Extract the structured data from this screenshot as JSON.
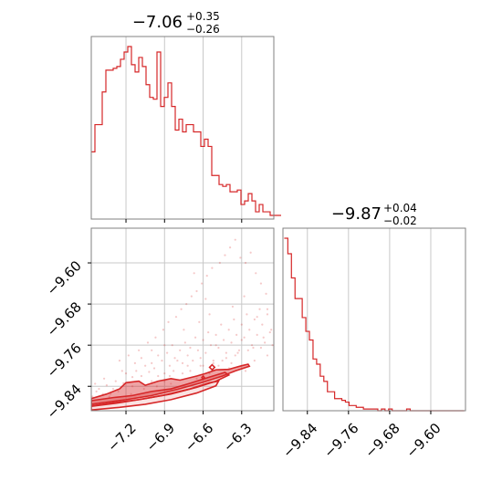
{
  "chart_data": [
    {
      "type": "histogram",
      "title": {
        "value": "−7.06",
        "plus": "+0.35",
        "minus": "−0.26"
      },
      "x_ticks": [
        "−7.2",
        "−6.9",
        "−6.6",
        "−6.3"
      ],
      "x_tick_values": [
        -7.2,
        -6.9,
        -6.6,
        -6.3
      ],
      "xlim": [
        -7.47,
        -6.05
      ],
      "bins_start": -7.47,
      "bin_width": 0.0284,
      "counts": [
        37,
        52,
        52,
        70,
        82,
        82,
        83,
        84,
        88,
        92,
        95,
        85,
        81,
        89,
        84,
        74,
        67,
        66,
        92,
        62,
        67,
        75,
        62,
        49,
        55,
        48,
        52,
        52,
        48,
        48,
        40,
        44,
        40,
        24,
        24,
        19,
        18,
        19,
        15,
        15,
        16,
        8,
        10,
        14,
        10,
        4,
        8,
        4,
        4,
        2,
        2,
        2
      ],
      "color": "#d62728"
    },
    {
      "type": "histogram",
      "title": {
        "value": "−9.87",
        "plus": "+0.04",
        "minus": "−0.02"
      },
      "x_ticks": [
        "−9.84",
        "−9.76",
        "−9.68",
        "−9.60"
      ],
      "x_tick_values": [
        -9.84,
        -9.76,
        -9.68,
        -9.6
      ],
      "xlim": [
        -9.8875,
        -9.5325
      ],
      "bins_start": -9.885,
      "bin_width": 0.007,
      "counts": [
        100,
        91,
        77,
        65,
        65,
        54,
        46,
        41,
        30,
        27,
        20,
        17,
        11,
        11,
        7,
        7,
        6,
        5,
        3,
        3,
        2,
        2,
        1,
        1,
        1,
        1,
        0,
        1,
        0,
        1,
        0,
        0,
        0,
        0,
        1,
        0,
        0,
        0,
        0,
        0,
        0,
        0,
        0,
        0,
        0,
        0,
        0,
        0,
        0,
        0
      ],
      "color": "#d62728"
    },
    {
      "type": "scatter",
      "x_ticks": [
        "−7.2",
        "−6.9",
        "−6.6",
        "−6.3"
      ],
      "x_tick_values": [
        -7.2,
        -6.9,
        -6.6,
        -6.3
      ],
      "y_ticks": [
        "−9.60",
        "−9.68",
        "−9.76",
        "−9.84"
      ],
      "y_tick_values": [
        -9.6,
        -9.68,
        -9.76,
        -9.84
      ],
      "xlim": [
        -7.47,
        -6.05
      ],
      "ylim": [
        -9.8875,
        -9.5325
      ],
      "contour_levels": [
        [
          [
            -7.47,
            -9.878
          ],
          [
            -7.3,
            -9.872
          ],
          [
            -7.1,
            -9.866
          ],
          [
            -6.9,
            -9.857
          ],
          [
            -6.7,
            -9.845
          ],
          [
            -6.55,
            -9.833
          ],
          [
            -6.48,
            -9.83
          ],
          [
            -6.5,
            -9.839
          ],
          [
            -6.65,
            -9.853
          ],
          [
            -6.85,
            -9.866
          ],
          [
            -7.05,
            -9.875
          ],
          [
            -7.25,
            -9.881
          ],
          [
            -7.47,
            -9.886
          ]
        ],
        [
          [
            -7.47,
            -9.868
          ],
          [
            -7.3,
            -9.862
          ],
          [
            -7.15,
            -9.858
          ],
          [
            -7.0,
            -9.85
          ],
          [
            -6.85,
            -9.845
          ],
          [
            -6.7,
            -9.834
          ],
          [
            -6.55,
            -9.822
          ],
          [
            -6.43,
            -9.813
          ],
          [
            -6.4,
            -9.818
          ],
          [
            -6.5,
            -9.83
          ],
          [
            -6.65,
            -9.842
          ],
          [
            -6.85,
            -9.855
          ],
          [
            -7.05,
            -9.864
          ],
          [
            -7.25,
            -9.872
          ],
          [
            -7.47,
            -9.879
          ]
        ],
        [
          [
            -7.47,
            -9.864
          ],
          [
            -7.35,
            -9.855
          ],
          [
            -7.25,
            -9.845
          ],
          [
            -7.2,
            -9.833
          ],
          [
            -7.1,
            -9.83
          ],
          [
            -7.05,
            -9.838
          ],
          [
            -6.95,
            -9.83
          ],
          [
            -6.85,
            -9.825
          ],
          [
            -6.78,
            -9.828
          ],
          [
            -6.65,
            -9.82
          ],
          [
            -6.58,
            -9.815
          ],
          [
            -6.5,
            -9.808
          ],
          [
            -6.4,
            -9.807
          ],
          [
            -6.3,
            -9.8
          ],
          [
            -6.25,
            -9.797
          ],
          [
            -6.24,
            -9.801
          ],
          [
            -6.35,
            -9.81
          ],
          [
            -6.45,
            -9.82
          ],
          [
            -6.6,
            -9.832
          ],
          [
            -6.8,
            -9.846
          ],
          [
            -7.0,
            -9.858
          ],
          [
            -7.2,
            -9.866
          ],
          [
            -7.47,
            -9.875
          ]
        ]
      ],
      "contour_islands": [
        [
          [
            -6.55,
            -9.803
          ],
          [
            -6.53,
            -9.798
          ],
          [
            -6.51,
            -9.803
          ],
          [
            -6.53,
            -9.808
          ]
        ],
        [
          [
            -6.61,
            -9.823
          ],
          [
            -6.6,
            -9.82
          ],
          [
            -6.59,
            -9.823
          ],
          [
            -6.6,
            -9.826
          ]
        ]
      ],
      "scatter_points": [
        [
          -7.41,
          -9.845
        ],
        [
          -7.35,
          -9.838
        ],
        [
          -7.3,
          -9.845
        ],
        [
          -7.28,
          -9.83
        ],
        [
          -7.22,
          -9.834
        ],
        [
          -7.2,
          -9.815
        ],
        [
          -7.15,
          -9.822
        ],
        [
          -7.12,
          -9.81
        ],
        [
          -7.08,
          -9.82
        ],
        [
          -7.05,
          -9.8
        ],
        [
          -7.02,
          -9.812
        ],
        [
          -7.0,
          -9.795
        ],
        [
          -6.98,
          -9.805
        ],
        [
          -6.95,
          -9.78
        ],
        [
          -6.92,
          -9.79
        ],
        [
          -6.9,
          -9.815
        ],
        [
          -6.88,
          -9.775
        ],
        [
          -6.86,
          -9.8
        ],
        [
          -6.84,
          -9.76
        ],
        [
          -6.82,
          -9.785
        ],
        [
          -6.8,
          -9.79
        ],
        [
          -6.78,
          -9.77
        ],
        [
          -6.76,
          -9.795
        ],
        [
          -6.74,
          -9.755
        ],
        [
          -6.72,
          -9.78
        ],
        [
          -6.7,
          -9.765
        ],
        [
          -6.68,
          -9.79
        ],
        [
          -6.66,
          -9.745
        ],
        [
          -6.64,
          -9.77
        ],
        [
          -6.62,
          -9.785
        ],
        [
          -6.6,
          -9.75
        ],
        [
          -6.58,
          -9.775
        ],
        [
          -6.56,
          -9.735
        ],
        [
          -6.54,
          -9.76
        ],
        [
          -6.52,
          -9.79
        ],
        [
          -6.5,
          -9.74
        ],
        [
          -6.48,
          -9.765
        ],
        [
          -6.46,
          -9.72
        ],
        [
          -6.44,
          -9.75
        ],
        [
          -6.42,
          -9.775
        ],
        [
          -6.4,
          -9.73
        ],
        [
          -6.38,
          -9.755
        ],
        [
          -6.36,
          -9.71
        ],
        [
          -6.34,
          -9.74
        ],
        [
          -6.32,
          -9.77
        ],
        [
          -6.3,
          -9.72
        ],
        [
          -6.28,
          -9.745
        ],
        [
          -6.26,
          -9.7
        ],
        [
          -6.24,
          -9.73
        ],
        [
          -6.22,
          -9.76
        ],
        [
          -6.2,
          -9.71
        ],
        [
          -6.18,
          -9.74
        ],
        [
          -6.16,
          -9.69
        ],
        [
          -6.14,
          -9.72
        ],
        [
          -6.12,
          -9.755
        ],
        [
          -6.1,
          -9.7
        ],
        [
          -6.08,
          -9.735
        ],
        [
          -7.25,
          -9.79
        ],
        [
          -7.18,
          -9.78
        ],
        [
          -7.1,
          -9.77
        ],
        [
          -7.03,
          -9.755
        ],
        [
          -6.97,
          -9.745
        ],
        [
          -6.91,
          -9.73
        ],
        [
          -6.87,
          -9.715
        ],
        [
          -6.81,
          -9.705
        ],
        [
          -6.77,
          -9.69
        ],
        [
          -6.73,
          -9.68
        ],
        [
          -6.69,
          -9.665
        ],
        [
          -6.65,
          -9.655
        ],
        [
          -6.61,
          -9.64
        ],
        [
          -6.57,
          -9.625
        ],
        [
          -6.53,
          -9.61
        ],
        [
          -6.47,
          -9.6
        ],
        [
          -6.43,
          -9.585
        ],
        [
          -6.39,
          -9.57
        ],
        [
          -6.35,
          -9.555
        ],
        [
          -6.31,
          -9.59
        ],
        [
          -6.27,
          -9.6
        ],
        [
          -6.23,
          -9.58
        ],
        [
          -6.19,
          -9.62
        ],
        [
          -6.15,
          -9.64
        ],
        [
          -6.11,
          -9.66
        ],
        [
          -6.95,
          -9.82
        ],
        [
          -6.9,
          -9.83
        ],
        [
          -6.7,
          -9.81
        ],
        [
          -6.6,
          -9.8
        ],
        [
          -6.45,
          -9.79
        ],
        [
          -6.35,
          -9.78
        ],
        [
          -6.25,
          -9.77
        ],
        [
          -6.15,
          -9.765
        ],
        [
          -6.3,
          -9.75
        ],
        [
          -6.5,
          -9.76
        ],
        [
          -6.72,
          -9.8
        ],
        [
          -6.83,
          -9.81
        ],
        [
          -7.0,
          -9.83
        ],
        [
          -7.15,
          -9.84
        ],
        [
          -7.32,
          -9.855
        ],
        [
          -6.4,
          -9.805
        ],
        [
          -6.55,
          -9.815
        ],
        [
          -6.65,
          -9.825
        ],
        [
          -6.85,
          -9.835
        ],
        [
          -6.2,
          -9.79
        ],
        [
          -6.1,
          -9.78
        ],
        [
          -6.27,
          -9.81
        ],
        [
          -6.38,
          -9.795
        ],
        [
          -6.48,
          -9.8
        ],
        [
          -7.46,
          -9.86
        ],
        [
          -7.43,
          -9.85
        ],
        [
          -7.38,
          -9.855
        ],
        [
          -7.33,
          -9.86
        ],
        [
          -7.26,
          -9.85
        ],
        [
          -7.16,
          -9.855
        ],
        [
          -7.06,
          -9.845
        ],
        [
          -6.96,
          -9.84
        ],
        [
          -6.86,
          -9.82
        ],
        [
          -6.76,
          -9.815
        ],
        [
          -6.62,
          -9.8
        ],
        [
          -6.52,
          -9.795
        ],
        [
          -6.42,
          -9.785
        ],
        [
          -6.33,
          -9.775
        ],
        [
          -6.21,
          -9.765
        ],
        [
          -6.13,
          -9.745
        ],
        [
          -6.07,
          -9.73
        ],
        [
          -6.06,
          -9.76
        ],
        [
          -6.18,
          -9.705
        ],
        [
          -6.1,
          -9.69
        ],
        [
          -6.28,
          -9.665
        ],
        [
          -6.37,
          -9.685
        ],
        [
          -6.55,
          -9.7
        ],
        [
          -6.63,
          -9.715
        ],
        [
          -6.75,
          -9.73
        ],
        [
          -6.67,
          -9.62
        ],
        [
          -6.58,
          -9.67
        ],
        [
          -6.9,
          -9.76
        ],
        [
          -7.0,
          -9.77
        ],
        [
          -7.08,
          -9.785
        ],
        [
          -7.13,
          -9.795
        ],
        [
          -7.23,
          -9.81
        ],
        [
          -7.37,
          -9.825
        ],
        [
          -7.44,
          -9.835
        ]
      ],
      "color": "#d62728",
      "grid": true
    }
  ]
}
